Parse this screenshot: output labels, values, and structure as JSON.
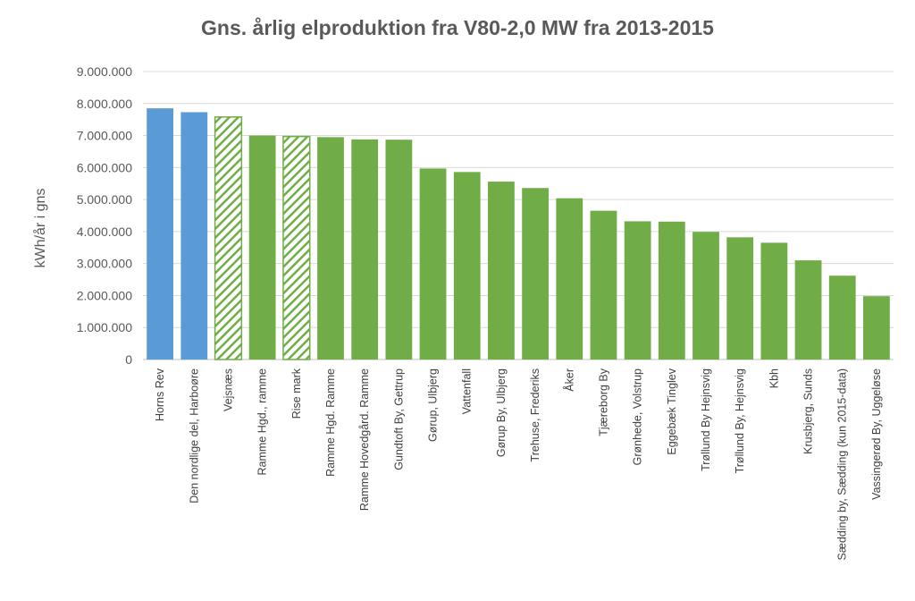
{
  "chart_data": {
    "type": "bar",
    "title": "Gns. årlig elproduktion fra V80-2,0 MW fra 2013-2015",
    "xlabel": "",
    "ylabel": "kWh/år i gns",
    "ylim": [
      0,
      9000000
    ],
    "yticks": [
      0,
      1000000,
      2000000,
      3000000,
      4000000,
      5000000,
      6000000,
      7000000,
      8000000,
      9000000
    ],
    "ytick_labels": [
      "0",
      "1.000.000",
      "2.000.000",
      "3.000.000",
      "4.000.000",
      "5.000.000",
      "6.000.000",
      "7.000.000",
      "8.000.000",
      "9.000.000"
    ],
    "grid": true,
    "legend": "none",
    "colors": {
      "offshore": "#5b9bd5",
      "onshore": "#70ad47",
      "hatched_fill": "#ffffff",
      "grid": "#d9d9d9"
    },
    "categories": [
      "Horns Rev",
      "Den nordlige del, Harboøre",
      "Vejsnæs",
      "Ramme Hgd., ramme",
      "Rise mark",
      "Ramme Hgd. Ramme",
      "Ramme Hovedgård. Ramme",
      "Gundtoft By, Gettrup",
      "Gørup, Ulbjerg",
      "Vattenfall",
      "Gørup By, Ulbjerg",
      "Trehuse, Frederiks",
      "Åker",
      "Tjæreborg By",
      "Grønhede, Volstrup",
      "Eggebæk Tinglev",
      "Trøllund By Hejnsvig",
      "Trøllund By, Hejnsvig",
      "Kbh",
      "Krusbjerg, Sunds",
      "Sædding by, Sædding (kun 2015-data)",
      "Vassingerød By, Uggeløse"
    ],
    "values": [
      7850000,
      7730000,
      7580000,
      7000000,
      6970000,
      6950000,
      6880000,
      6870000,
      5970000,
      5860000,
      5560000,
      5360000,
      5040000,
      4650000,
      4320000,
      4310000,
      3990000,
      3820000,
      3650000,
      3100000,
      2620000,
      1980000
    ],
    "styles": [
      "offshore",
      "offshore",
      "hatched",
      "onshore",
      "hatched",
      "onshore",
      "onshore",
      "onshore",
      "onshore",
      "onshore",
      "onshore",
      "onshore",
      "onshore",
      "onshore",
      "onshore",
      "onshore",
      "onshore",
      "onshore",
      "onshore",
      "onshore",
      "onshore",
      "onshore"
    ]
  }
}
